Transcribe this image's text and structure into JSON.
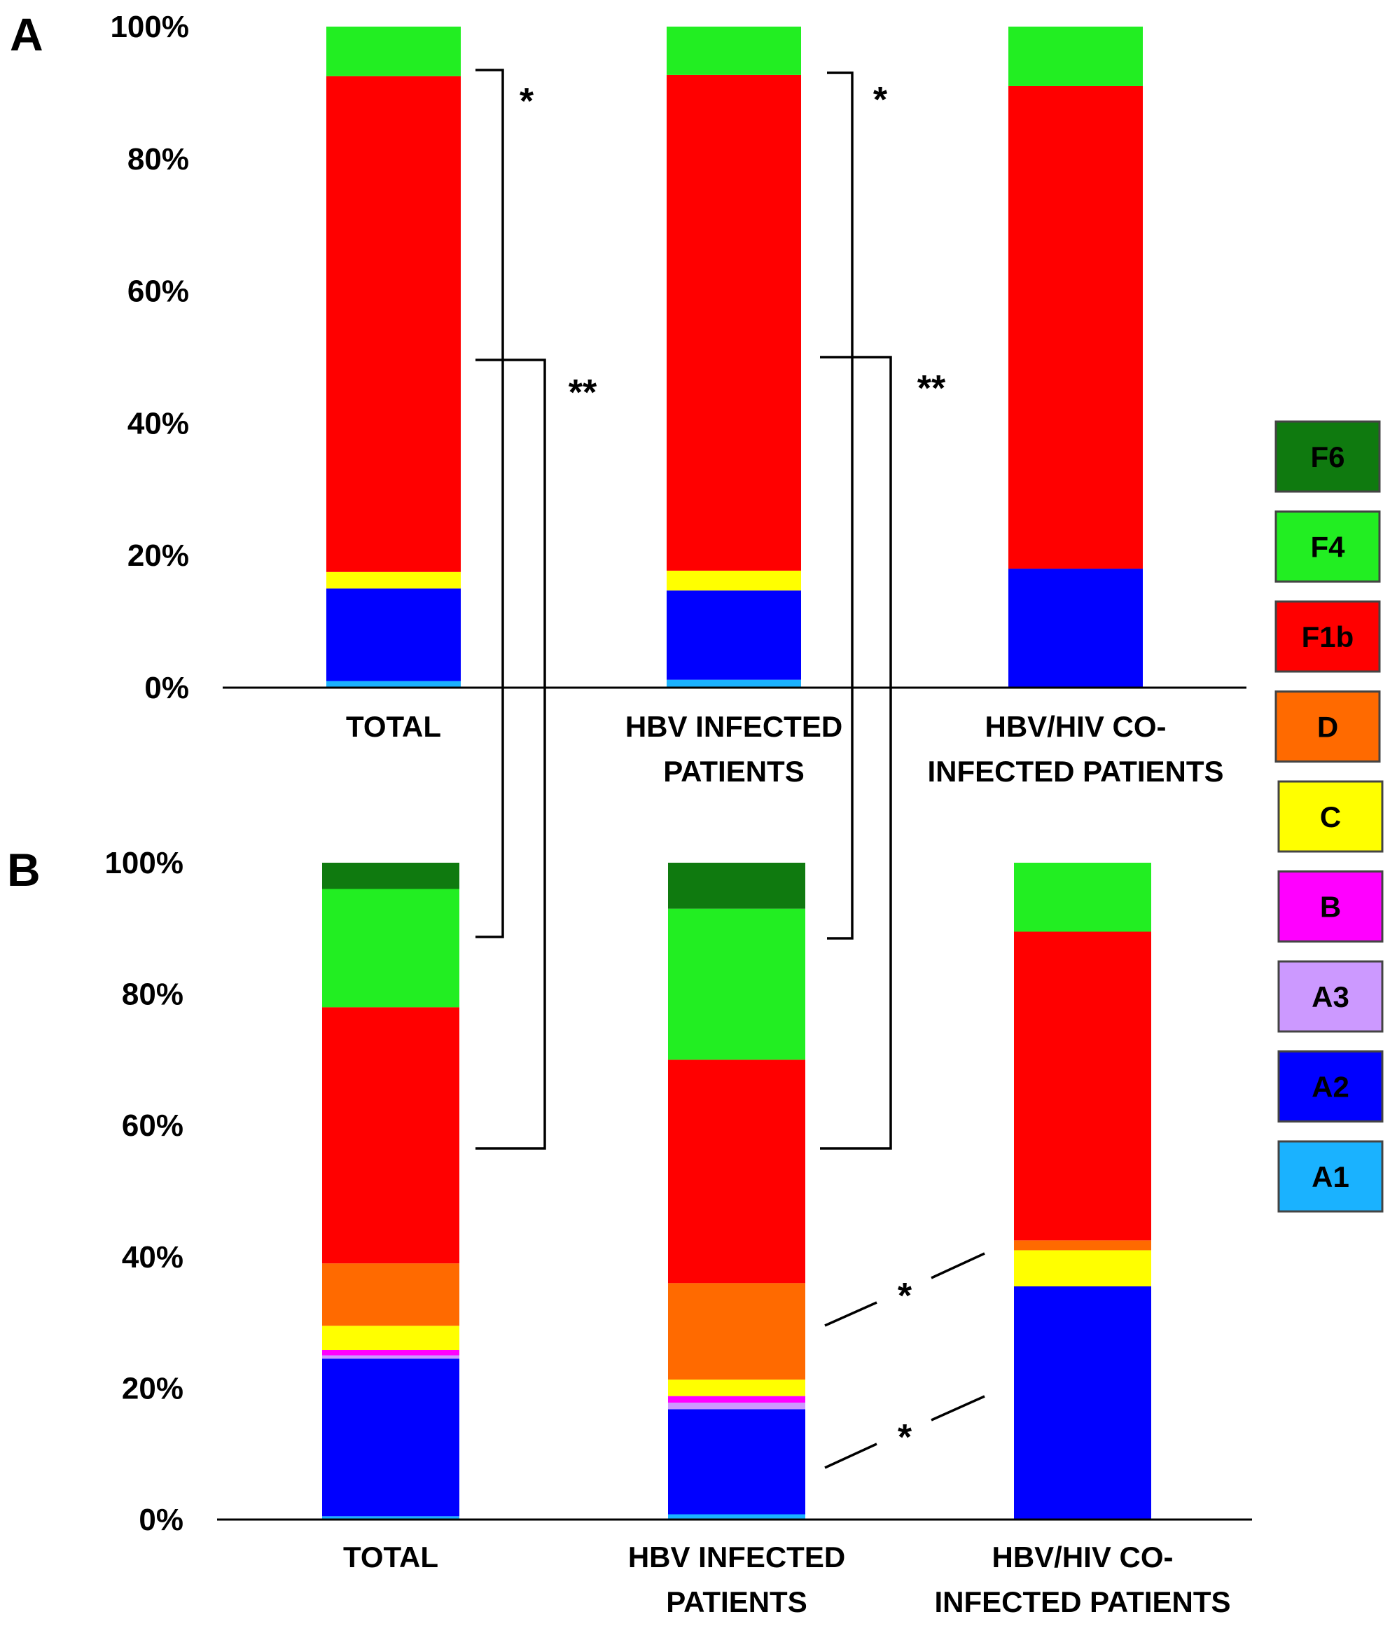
{
  "legend": [
    {
      "label": "F6",
      "color": "#0f7a0f"
    },
    {
      "label": "F4",
      "color": "#22ee22"
    },
    {
      "label": "F1b",
      "color": "#ff0000"
    },
    {
      "label": "D",
      "color": "#ff6a00"
    },
    {
      "label": "C",
      "color": "#ffff00"
    },
    {
      "label": "B",
      "color": "#ff00ff"
    },
    {
      "label": "A3",
      "color": "#cc99ff"
    },
    {
      "label": "A2",
      "color": "#0000ff"
    },
    {
      "label": "A1",
      "color": "#1ab2ff"
    }
  ],
  "chart_data": [
    {
      "panel": "A",
      "type": "bar",
      "stacked": true,
      "ylim": [
        0,
        100
      ],
      "yticks": [
        "0%",
        "20%",
        "40%",
        "60%",
        "80%",
        "100%"
      ],
      "categories": [
        [
          "TOTAL"
        ],
        [
          "HBV INFECTED",
          "PATIENTS"
        ],
        [
          "HBV/HIV CO-",
          "INFECTED PATIENTS"
        ]
      ],
      "series": [
        {
          "name": "A1",
          "values": [
            1,
            1.2,
            0
          ]
        },
        {
          "name": "A2",
          "values": [
            14,
            13.5,
            18
          ]
        },
        {
          "name": "A3",
          "values": [
            0,
            0,
            0
          ]
        },
        {
          "name": "B",
          "values": [
            0,
            0,
            0
          ]
        },
        {
          "name": "C",
          "values": [
            2.5,
            3,
            0
          ]
        },
        {
          "name": "D",
          "values": [
            0,
            0,
            0
          ]
        },
        {
          "name": "F1b",
          "values": [
            75,
            75,
            73
          ]
        },
        {
          "name": "F4",
          "values": [
            7.5,
            7.3,
            9
          ]
        },
        {
          "name": "F6",
          "values": [
            0,
            0,
            0
          ]
        }
      ]
    },
    {
      "panel": "B",
      "type": "bar",
      "stacked": true,
      "ylim": [
        0,
        100
      ],
      "yticks": [
        "0%",
        "20%",
        "40%",
        "60%",
        "80%",
        "100%"
      ],
      "categories": [
        [
          "TOTAL"
        ],
        [
          "HBV INFECTED",
          "PATIENTS"
        ],
        [
          "HBV/HIV CO-",
          "INFECTED PATIENTS"
        ]
      ],
      "series": [
        {
          "name": "A1",
          "values": [
            0.5,
            0.8,
            0
          ]
        },
        {
          "name": "A2",
          "values": [
            24,
            16,
            35.5
          ]
        },
        {
          "name": "A3",
          "values": [
            0.5,
            1,
            0
          ]
        },
        {
          "name": "B",
          "values": [
            0.8,
            1,
            0
          ]
        },
        {
          "name": "C",
          "values": [
            3.7,
            2.5,
            5.5
          ]
        },
        {
          "name": "D",
          "values": [
            9.5,
            14.7,
            1.5
          ]
        },
        {
          "name": "F1b",
          "values": [
            39,
            34,
            47
          ]
        },
        {
          "name": "F4",
          "values": [
            18,
            23,
            10.5
          ]
        },
        {
          "name": "F6",
          "values": [
            4,
            7,
            0
          ]
        }
      ]
    }
  ],
  "annotations": {
    "single": "*",
    "double": "**"
  }
}
